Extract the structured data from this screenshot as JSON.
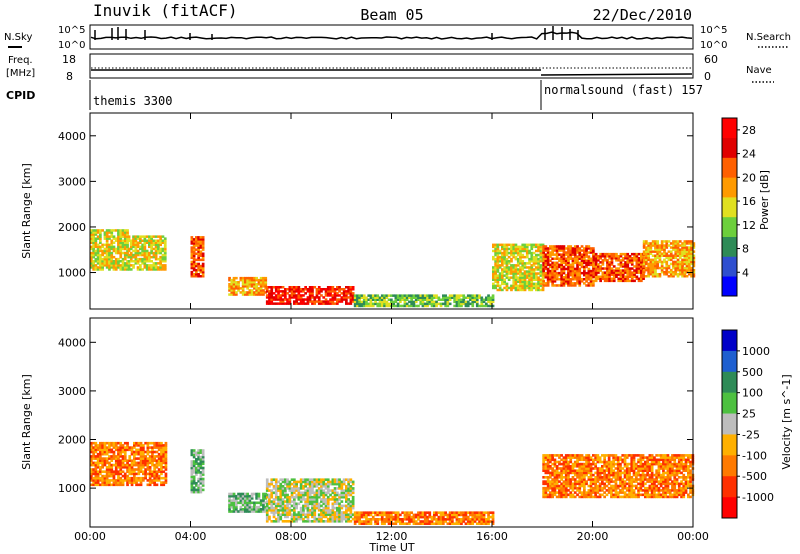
{
  "header": {
    "station": "Inuvik (fitACF)",
    "beam": "Beam 05",
    "date": "22/Dec/2010"
  },
  "strips": {
    "nsky_label": "N.Sky",
    "nsearch_label": "N.Search",
    "nsky_ticks": [
      "10^5",
      "10^0"
    ],
    "nsearch_ticks": [
      "10^5",
      "10^0"
    ],
    "freq_label": "Freq.",
    "freq_unit": "[MHz]",
    "freq_ticks": [
      "18",
      "8"
    ],
    "nave_label": "Nave",
    "nave_ticks": [
      "60",
      "0"
    ],
    "cpid_label": "CPID",
    "cpid_segments": [
      {
        "label": "themis 3300",
        "start": 0,
        "end": 18
      },
      {
        "label": "normalsound (fast) 157",
        "start": 18,
        "end": 24
      }
    ]
  },
  "colors": {
    "power": [
      "#0000ff",
      "#2f4fcf",
      "#2e8b57",
      "#6ccf3c",
      "#e0e020",
      "#ff9a00",
      "#ff6000",
      "#e00000",
      "#ff0000"
    ],
    "velocity": [
      "#0000c8",
      "#1e5fd0",
      "#2e8b57",
      "#4dc040",
      "#bdbdbd",
      "#ffb000",
      "#ff7a00",
      "#ff3000",
      "#ff0000"
    ]
  },
  "chart_data": [
    {
      "type": "heatmap",
      "title": "",
      "xlabel": "",
      "ylabel": "Slant Range [km]",
      "xlim": [
        0,
        24
      ],
      "ylim": [
        200,
        4500
      ],
      "x_ticks": [
        "00:00",
        "04:00",
        "08:00",
        "12:00",
        "16:00",
        "20:00",
        "00:00"
      ],
      "y_ticks": [
        1000,
        2000,
        3000,
        4000
      ],
      "colorbar": {
        "label": "Power [dB]",
        "ticks": [
          4,
          8,
          12,
          16,
          20,
          24,
          28
        ],
        "range": [
          0,
          30
        ]
      },
      "regions": [
        {
          "t0": 0.0,
          "t1": 1.5,
          "r0": 1050,
          "r1": 1950,
          "level": 16
        },
        {
          "t0": 1.5,
          "t1": 3.0,
          "r0": 1050,
          "r1": 1800,
          "level": 14
        },
        {
          "t0": 4.0,
          "t1": 4.5,
          "r0": 900,
          "r1": 1800,
          "level": 22
        },
        {
          "t0": 5.5,
          "t1": 7.0,
          "r0": 500,
          "r1": 900,
          "level": 18
        },
        {
          "t0": 7.0,
          "t1": 10.5,
          "r0": 300,
          "r1": 700,
          "level": 28
        },
        {
          "t0": 10.5,
          "t1": 16.0,
          "r0": 250,
          "r1": 500,
          "level": 10
        },
        {
          "t0": 16.0,
          "t1": 18.0,
          "r0": 600,
          "r1": 1600,
          "level": 16
        },
        {
          "t0": 18.0,
          "t1": 20.0,
          "r0": 700,
          "r1": 1600,
          "level": 24
        },
        {
          "t0": 20.0,
          "t1": 22.0,
          "r0": 800,
          "r1": 1400,
          "level": 22
        },
        {
          "t0": 22.0,
          "t1": 24.0,
          "r0": 900,
          "r1": 1700,
          "level": 18
        }
      ]
    },
    {
      "type": "heatmap",
      "title": "",
      "xlabel": "Time UT",
      "ylabel": "Slant Range [km]",
      "xlim": [
        0,
        24
      ],
      "ylim": [
        200,
        4500
      ],
      "x_ticks": [
        "00:00",
        "04:00",
        "08:00",
        "12:00",
        "16:00",
        "20:00",
        "00:00"
      ],
      "y_ticks": [
        1000,
        2000,
        3000,
        4000
      ],
      "colorbar": {
        "label": "Velocity [m s^-1]",
        "ticks": [
          "1000",
          "500",
          "100",
          "25",
          "-25",
          "-100",
          "-500",
          "-1000"
        ]
      },
      "regions": [
        {
          "t0": 0.0,
          "t1": 3.0,
          "r0": 1050,
          "r1": 1950,
          "level": "-100"
        },
        {
          "t0": 4.0,
          "t1": 4.5,
          "r0": 900,
          "r1": 1800,
          "level": "100"
        },
        {
          "t0": 5.5,
          "t1": 7.0,
          "r0": 500,
          "r1": 900,
          "level": "100"
        },
        {
          "t0": 7.0,
          "t1": 10.5,
          "r0": 300,
          "r1": 1200,
          "level": "25"
        },
        {
          "t0": 10.5,
          "t1": 16.0,
          "r0": 250,
          "r1": 500,
          "level": "-100"
        },
        {
          "t0": 18.0,
          "t1": 24.0,
          "r0": 800,
          "r1": 1700,
          "level": "-100"
        }
      ]
    }
  ]
}
